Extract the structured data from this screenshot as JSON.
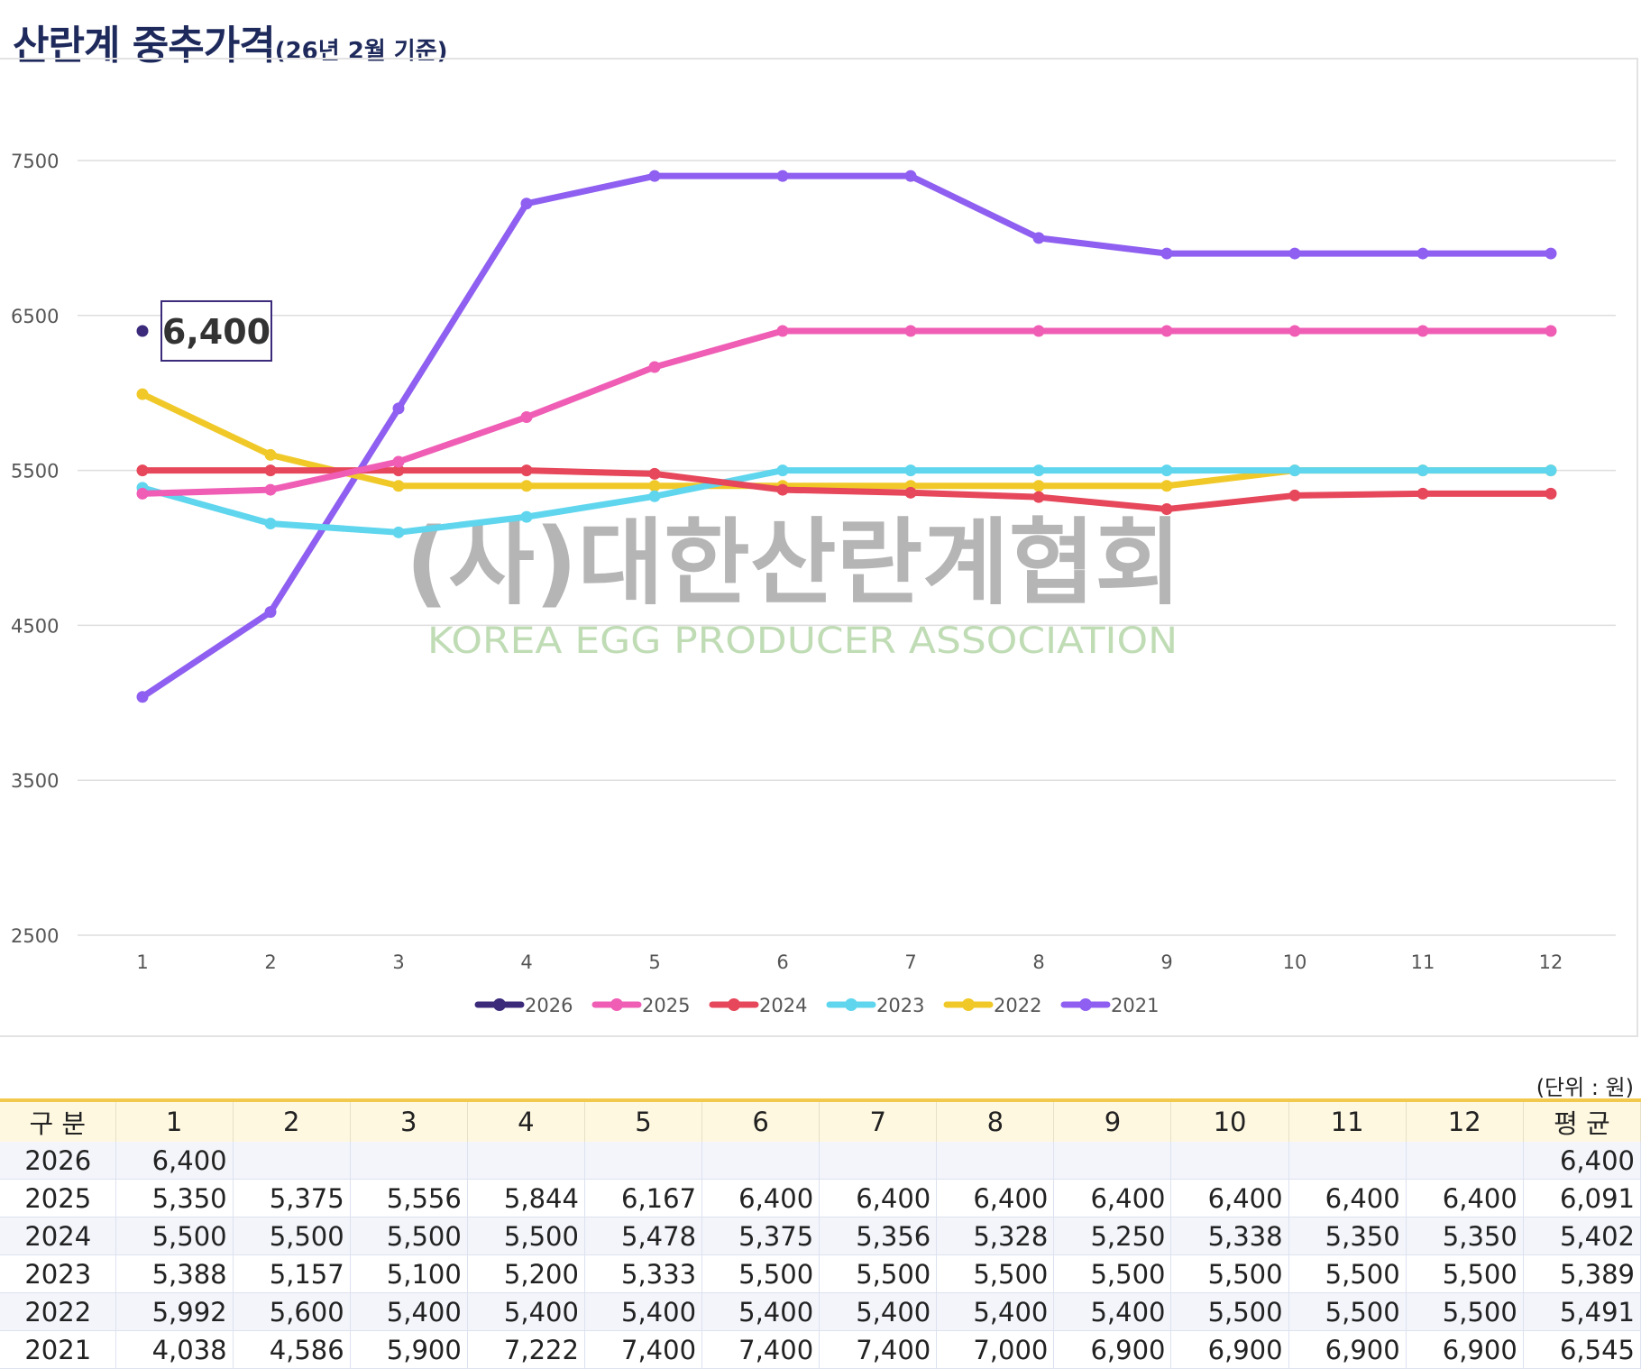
{
  "title": {
    "main": "산란계 중추가격",
    "sub": "(26년 2월 기준)"
  },
  "watermark": {
    "korean": "(사)대한산란계협회",
    "english": "KOREA EGG PRODUCER ASSOCIATION"
  },
  "unit_note": "(단위 : 원)",
  "table": {
    "headers": [
      "구 분",
      "1",
      "2",
      "3",
      "4",
      "5",
      "6",
      "7",
      "8",
      "9",
      "10",
      "11",
      "12",
      "평 균"
    ],
    "rows": [
      [
        "2026",
        "6,400",
        "",
        "",
        "",
        "",
        "",
        "",
        "",
        "",
        "",
        "",
        "",
        "6,400"
      ],
      [
        "2025",
        "5,350",
        "5,375",
        "5,556",
        "5,844",
        "6,167",
        "6,400",
        "6,400",
        "6,400",
        "6,400",
        "6,400",
        "6,400",
        "6,400",
        "6,091"
      ],
      [
        "2024",
        "5,500",
        "5,500",
        "5,500",
        "5,500",
        "5,478",
        "5,375",
        "5,356",
        "5,328",
        "5,250",
        "5,338",
        "5,350",
        "5,350",
        "5,402"
      ],
      [
        "2023",
        "5,388",
        "5,157",
        "5,100",
        "5,200",
        "5,333",
        "5,500",
        "5,500",
        "5,500",
        "5,500",
        "5,500",
        "5,500",
        "5,500",
        "5,389"
      ],
      [
        "2022",
        "5,992",
        "5,600",
        "5,400",
        "5,400",
        "5,400",
        "5,400",
        "5,400",
        "5,400",
        "5,400",
        "5,500",
        "5,500",
        "5,500",
        "5,491"
      ],
      [
        "2021",
        "4,038",
        "4,586",
        "5,900",
        "7,222",
        "7,400",
        "7,400",
        "7,400",
        "7,000",
        "6,900",
        "6,900",
        "6,900",
        "6,900",
        "6,545"
      ]
    ]
  },
  "chart_data": {
    "type": "line",
    "title": "산란계 중추가격",
    "subtitle": "(26년 2월 기준)",
    "x": [
      "1",
      "2",
      "3",
      "4",
      "5",
      "6",
      "7",
      "8",
      "9",
      "10",
      "11",
      "12"
    ],
    "ylim": [
      2500,
      7500
    ],
    "yticks": [
      "2500",
      "3500",
      "4500",
      "5500",
      "6500",
      "7500"
    ],
    "grid": true,
    "legend_position": "bottom",
    "tooltip": {
      "series": "2026",
      "x": "1",
      "label": "6,400"
    },
    "series": [
      {
        "name": "2021",
        "color": "#8e5ff0",
        "values": [
          4038,
          4586,
          5900,
          7222,
          7400,
          7400,
          7400,
          7000,
          6900,
          6900,
          6900,
          6900
        ]
      },
      {
        "name": "2022",
        "color": "#f0c929",
        "values": [
          5992,
          5600,
          5400,
          5400,
          5400,
          5400,
          5400,
          5400,
          5400,
          5500,
          5500,
          5500
        ]
      },
      {
        "name": "2023",
        "color": "#5fd6ee",
        "values": [
          5388,
          5157,
          5100,
          5200,
          5333,
          5500,
          5500,
          5500,
          5500,
          5500,
          5500,
          5500
        ]
      },
      {
        "name": "2024",
        "color": "#e6475a",
        "values": [
          5500,
          5500,
          5500,
          5500,
          5478,
          5375,
          5356,
          5328,
          5250,
          5338,
          5350,
          5350
        ]
      },
      {
        "name": "2025",
        "color": "#ef5db5",
        "values": [
          5350,
          5375,
          5556,
          5844,
          6167,
          6400,
          6400,
          6400,
          6400,
          6400,
          6400,
          6400
        ]
      },
      {
        "name": "2026",
        "color": "#3b2a7a",
        "values": [
          6400,
          null,
          null,
          null,
          null,
          null,
          null,
          null,
          null,
          null,
          null,
          null
        ]
      }
    ],
    "legend_order": [
      "2026",
      "2025",
      "2024",
      "2023",
      "2022",
      "2021"
    ]
  }
}
